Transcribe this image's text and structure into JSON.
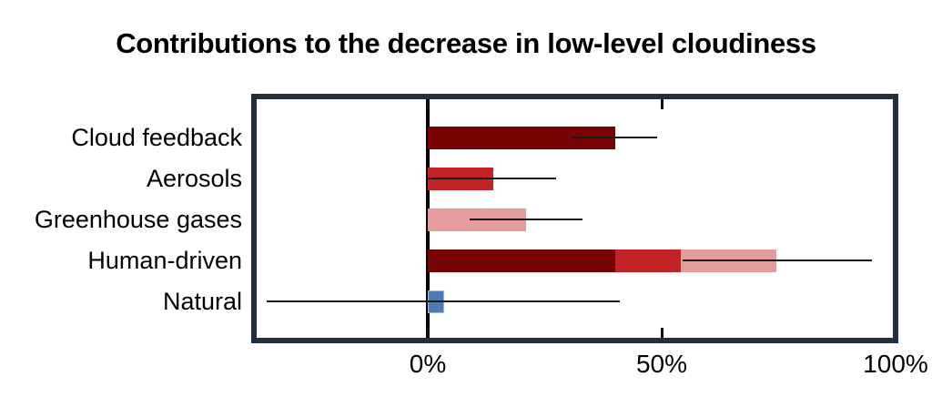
{
  "chart_data": {
    "type": "bar",
    "orientation": "horizontal",
    "title": "Contributions to the decrease in low-level cloudiness",
    "unit": "%",
    "xlabel": "",
    "ylabel": "",
    "xlim": [
      -37,
      100
    ],
    "grid": false,
    "legend": "none",
    "categories": [
      "Cloud feedback",
      "Aerosols",
      "Greenhouse gases",
      "Human-driven",
      "Natural"
    ],
    "x_ticks": [
      {
        "value": 0,
        "label": "0%"
      },
      {
        "value": 50,
        "label": "50%"
      },
      {
        "value": 100,
        "label": "100%"
      }
    ],
    "rows": [
      {
        "category": "Cloud feedback",
        "total": 40,
        "segments": [
          {
            "name": "cloud-feedback",
            "value": 40,
            "color": "#770303",
            "edge": null
          }
        ],
        "whisker": {
          "low": 31,
          "high": 49
        }
      },
      {
        "category": "Aerosols",
        "total": 14,
        "segments": [
          {
            "name": "aerosols",
            "value": 14,
            "color": "#c22326",
            "edge": null
          }
        ],
        "whisker": {
          "low": 0,
          "high": 27.5
        }
      },
      {
        "category": "Greenhouse gases",
        "total": 21,
        "segments": [
          {
            "name": "greenhouse-gases",
            "value": 21,
            "color": "#e49c9c",
            "edge": null
          }
        ],
        "whisker": {
          "low": 9,
          "high": 33
        }
      },
      {
        "category": "Human-driven",
        "total": 74.5,
        "segments": [
          {
            "name": "cloud-feedback",
            "value": 40,
            "color": "#770303",
            "edge": null
          },
          {
            "name": "aerosols",
            "value": 14,
            "color": "#c22326",
            "edge": null
          },
          {
            "name": "greenhouse-gases",
            "value": 20.5,
            "color": "#e49c9c",
            "edge": null
          }
        ],
        "whisker": {
          "low": 54.5,
          "high": 95
        }
      },
      {
        "category": "Natural",
        "total": 3.5,
        "segments": [
          {
            "name": "natural",
            "value": 3.5,
            "color": "#4d7bb5",
            "edge": "#9fbcdf"
          }
        ],
        "whisker": {
          "low": -34.5,
          "high": 41
        }
      }
    ],
    "colors": {
      "dark_red": "#770303",
      "medium_red": "#c22326",
      "pink": "#e49c9c",
      "blue": "#4d7bb5",
      "frame": "#20303f",
      "zero_line": "#000000",
      "whisker": "#1a1a1a",
      "background": "#ffffff"
    }
  }
}
